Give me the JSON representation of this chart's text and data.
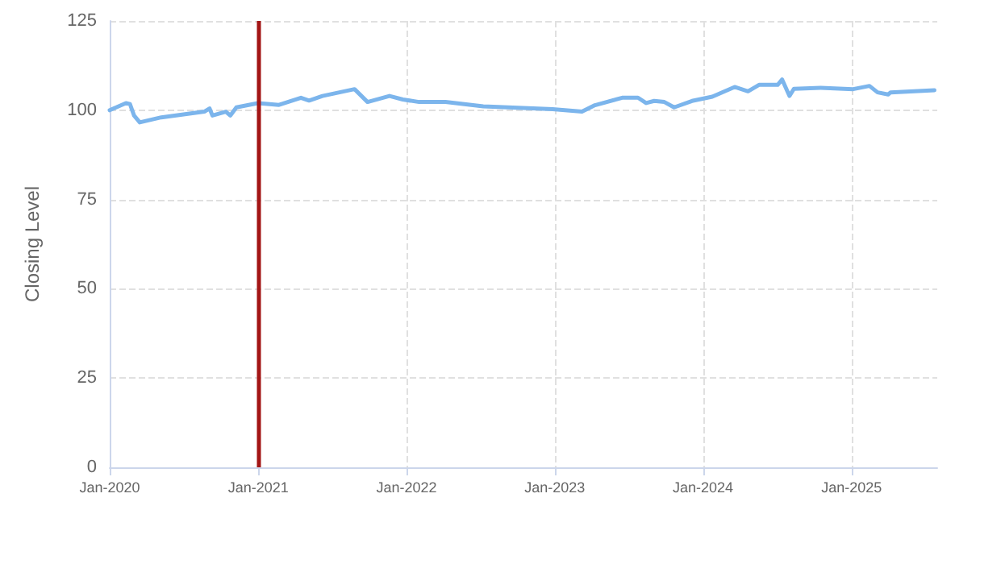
{
  "chart_data": {
    "type": "line",
    "ylabel": "Closing Level",
    "x": [
      "2020-01-01",
      "2020-02-10",
      "2020-02-20",
      "2020-03-01",
      "2020-03-15",
      "2020-05-07",
      "2020-08-21",
      "2020-09-03",
      "2020-09-10",
      "2020-10-13",
      "2020-10-24",
      "2020-11-08",
      "2020-12-31",
      "2021-02-21",
      "2021-04-16",
      "2021-05-06",
      "2021-06-08",
      "2021-08-26",
      "2021-09-27",
      "2021-11-20",
      "2021-12-23",
      "2022-02-01",
      "2022-04-07",
      "2022-07-09",
      "2022-12-27",
      "2023-03-09",
      "2023-04-10",
      "2023-06-16",
      "2023-07-25",
      "2023-08-14",
      "2023-09-03",
      "2023-09-28",
      "2023-10-22",
      "2023-12-05",
      "2024-01-24",
      "2024-03-19",
      "2024-04-21",
      "2024-05-18",
      "2024-07-03",
      "2024-07-14",
      "2024-08-01",
      "2024-08-12",
      "2024-10-17",
      "2025-01-05",
      "2025-02-14",
      "2025-03-06",
      "2025-04-01",
      "2025-04-07",
      "2025-07-24"
    ],
    "series": [
      {
        "color": "#7cb5ec",
        "values": [
          100.0,
          102,
          101.7,
          98.5,
          96.6,
          98,
          99.6,
          100.5,
          98.5,
          99.6,
          98.5,
          100.8,
          102,
          101.5,
          103.5,
          102.7,
          104,
          105.9,
          102.3,
          104,
          103,
          102.3,
          102.3,
          101.1,
          100.3,
          99.6,
          101.4,
          103.5,
          103.5,
          102,
          102.6,
          102.3,
          100.8,
          102.6,
          103.8,
          106.5,
          105.3,
          107.1,
          107.1,
          108.6,
          104,
          106,
          106.3,
          105.9,
          106.8,
          105,
          104.4,
          105,
          105.6
        ]
      }
    ],
    "xlim": [
      "2020-01-01",
      "2025-07-31"
    ],
    "xticks": [
      {
        "value": "2020-01-01",
        "label": "Jan-2020"
      },
      {
        "value": "2021-01-01",
        "label": "Jan-2021"
      },
      {
        "value": "2022-01-01",
        "label": "Jan-2022"
      },
      {
        "value": "2023-01-01",
        "label": "Jan-2023"
      },
      {
        "value": "2024-01-01",
        "label": "Jan-2024"
      },
      {
        "value": "2025-01-01",
        "label": "Jan-2025"
      }
    ],
    "ylim": [
      0,
      125
    ],
    "yticks": [
      0,
      25,
      50,
      75,
      100,
      125
    ],
    "ref_lines": [
      {
        "axis": "x",
        "value": "2021-01-01",
        "color": "#a31515"
      }
    ],
    "grid": true,
    "line_style": "solid",
    "marker": "none"
  }
}
